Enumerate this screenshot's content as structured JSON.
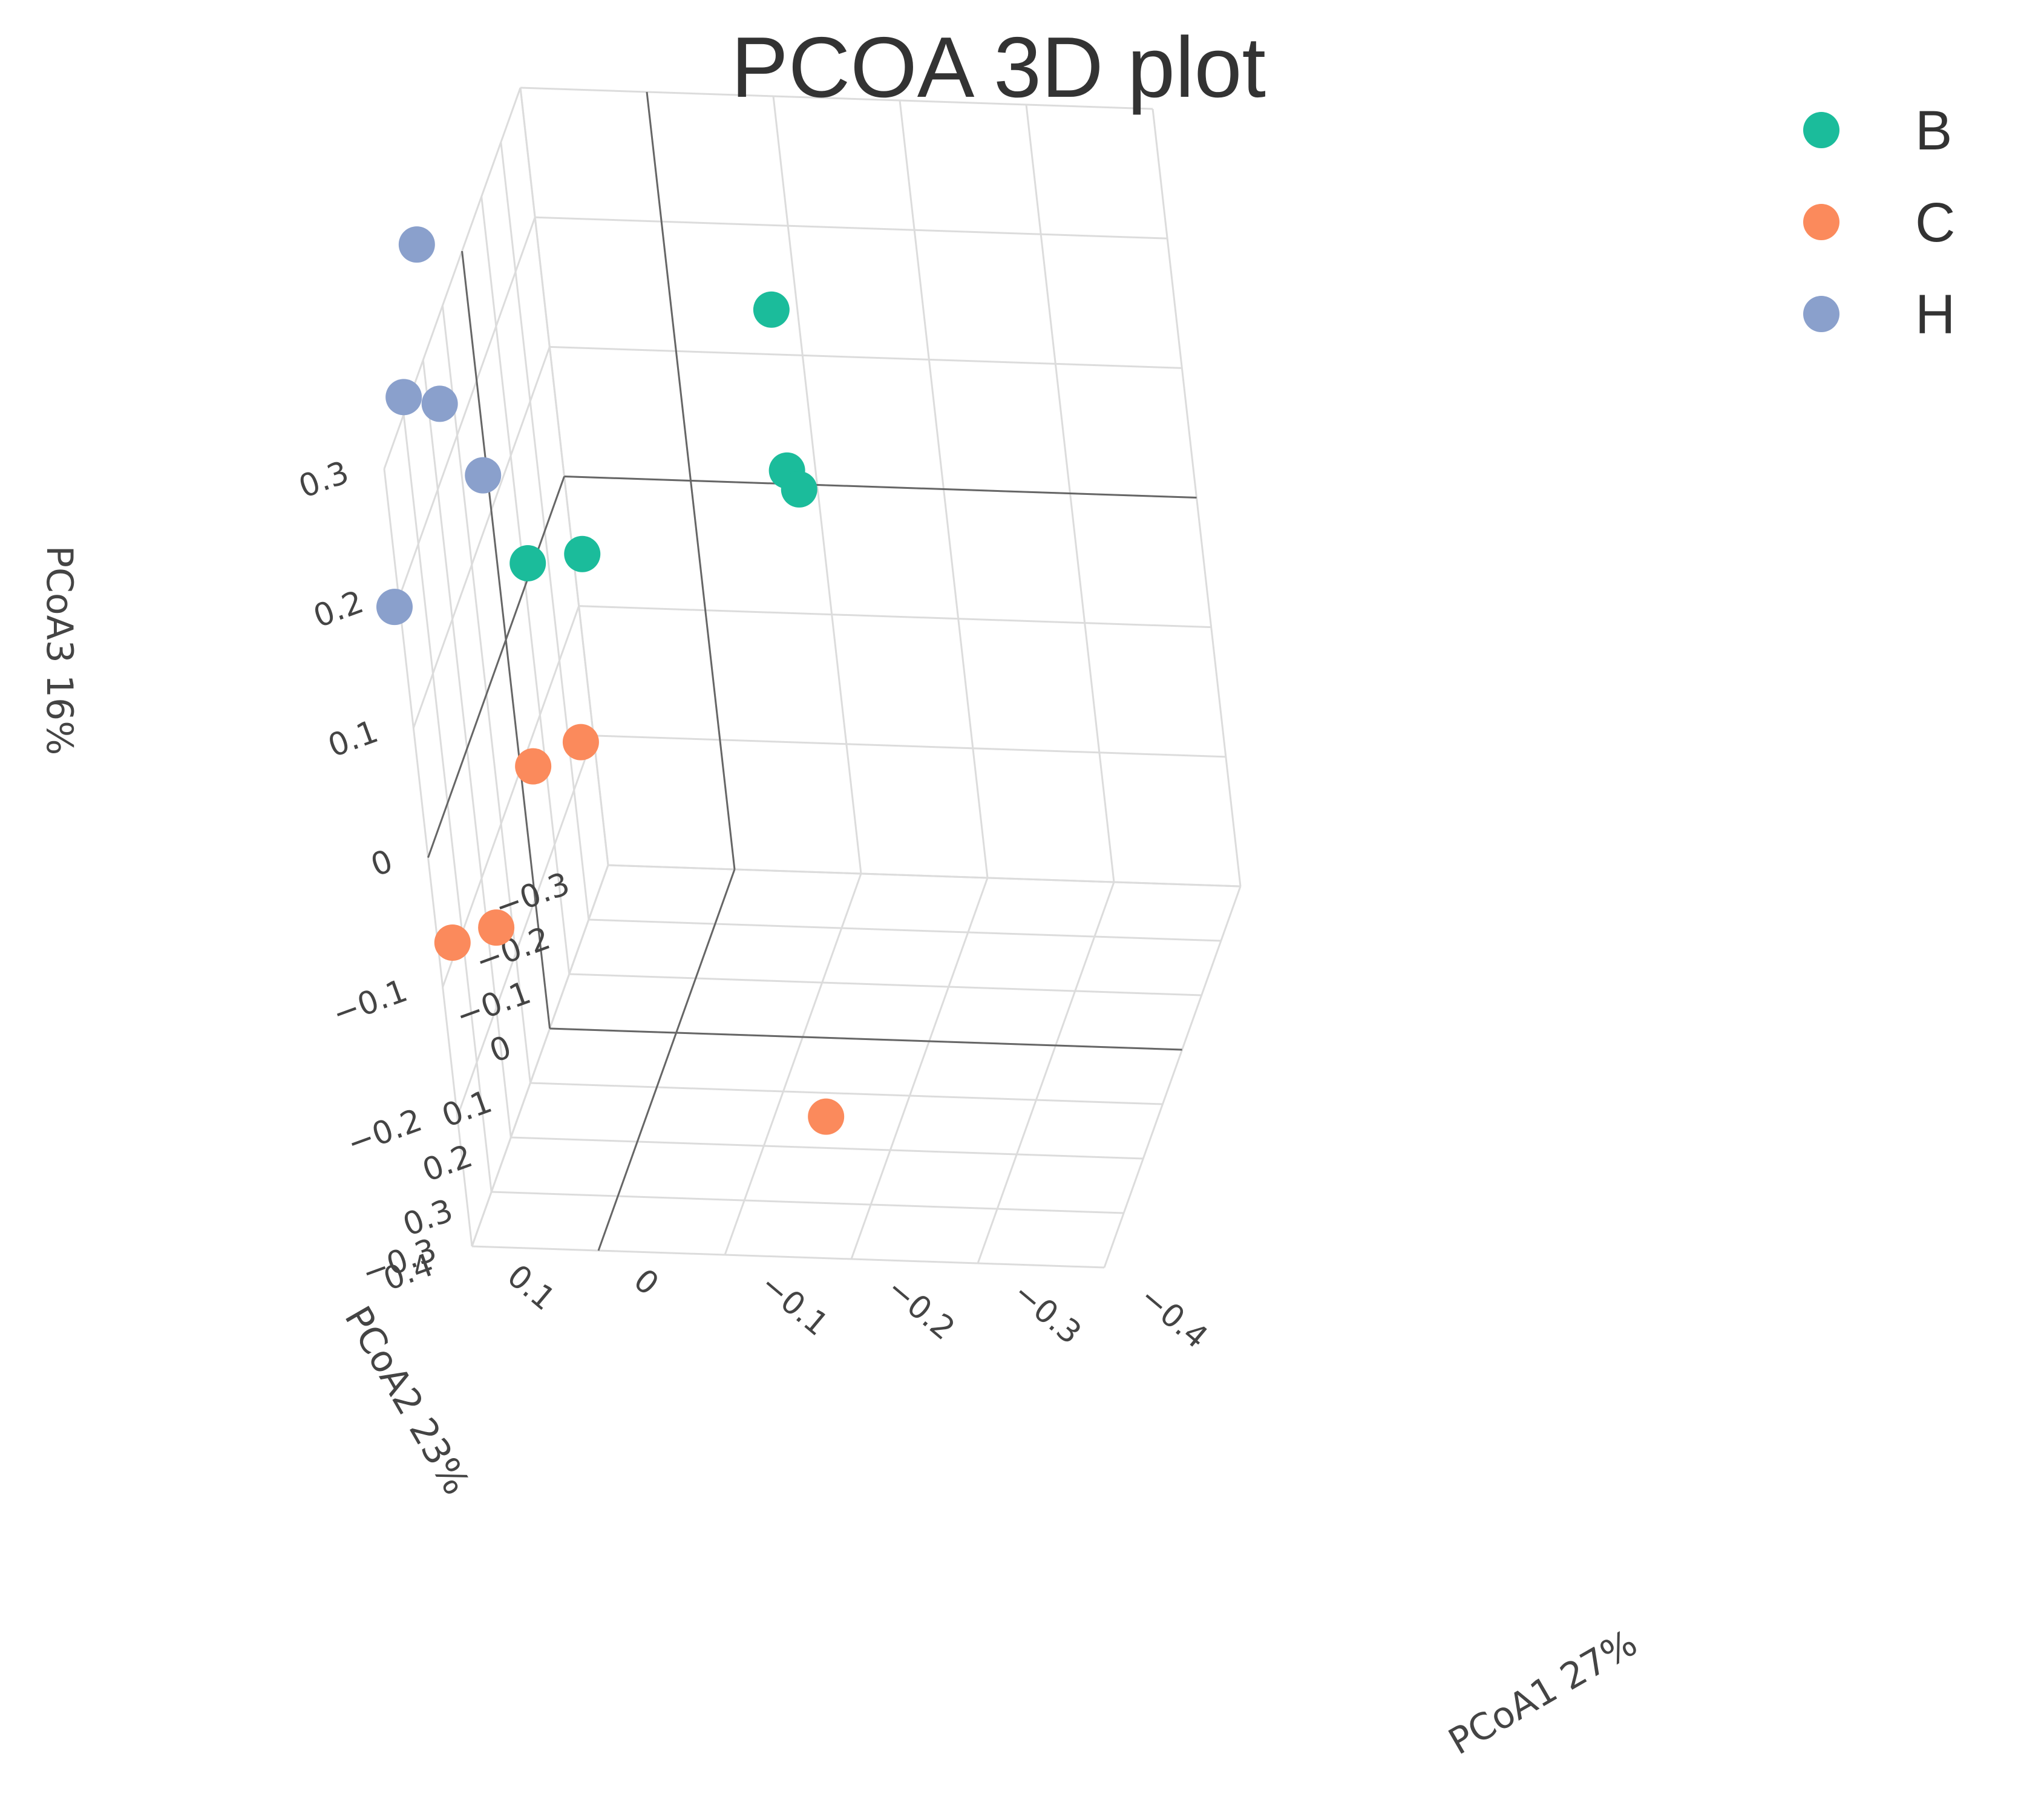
{
  "chart_data": {
    "type": "scatter",
    "title": "PCOA 3D plot",
    "axes": {
      "x": {
        "label": "PCoA1 27%",
        "ticks": [
          "0.1",
          "0",
          "−0.1",
          "−0.2",
          "−0.3",
          "−0.4"
        ]
      },
      "y": {
        "label": "PCoA2 23%",
        "ticks": [
          "−0.3",
          "−0.2",
          "−0.1",
          "0",
          "0.1",
          "0.2",
          "0.3",
          "0.4"
        ]
      },
      "z": {
        "label": "PCoA3 16%",
        "ticks": [
          "−0.3",
          "−0.2",
          "−0.1",
          "0",
          "0.1",
          "0.2",
          "0.3"
        ]
      }
    },
    "legend": {
      "placement": "top-right"
    },
    "grid": true,
    "series": [
      {
        "name": "B",
        "color": "#1bbc9b",
        "points": [
          {
            "x": -0.12,
            "y": -0.1,
            "z": 0.22
          },
          {
            "x": -0.12,
            "y": -0.09,
            "z": 0.1
          },
          {
            "x": -0.13,
            "y": -0.08,
            "z": 0.09
          },
          {
            "x": 0.05,
            "y": -0.09,
            "z": 0.03
          },
          {
            "x": 0.09,
            "y": -0.07,
            "z": 0.03
          }
        ]
      },
      {
        "name": "C",
        "color": "#fb8a5c",
        "points": [
          {
            "x": 0.07,
            "y": -0.1,
            "z": -0.12
          },
          {
            "x": 0.11,
            "y": -0.1,
            "z": -0.14
          },
          {
            "x": 0.17,
            "y": -0.18,
            "z": -0.3
          },
          {
            "x": 0.2,
            "y": -0.15,
            "z": -0.3
          },
          {
            "x": -0.15,
            "y": 0.19,
            "z": -0.28
          }
        ]
      },
      {
        "name": "H",
        "color": "#8aa0cc",
        "points": [
          {
            "x": 0.18,
            "y": -0.22,
            "z": 0.21
          },
          {
            "x": 0.2,
            "y": -0.2,
            "z": 0.1
          },
          {
            "x": 0.17,
            "y": -0.19,
            "z": 0.1
          },
          {
            "x": 0.14,
            "y": -0.18,
            "z": 0.05
          },
          {
            "x": 0.22,
            "y": -0.17,
            "z": -0.05
          }
        ]
      }
    ]
  }
}
